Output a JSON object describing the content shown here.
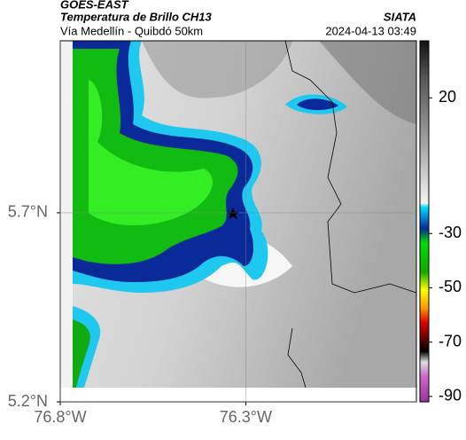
{
  "header": {
    "source": "GOES-EAST",
    "title": "Temperatura de Brillo CH13",
    "subtitle": "Vía Medellín - Quibdó 50km",
    "agency": "SIATA",
    "timestamp": "2024-04-13 03:49"
  },
  "map": {
    "xlim": [
      -76.8,
      -75.84
    ],
    "ylim": [
      5.2,
      6.155
    ],
    "xticks": [
      {
        "value": -76.8,
        "label": "76.8°W"
      },
      {
        "value": -76.3,
        "label": "76.3°W"
      }
    ],
    "yticks": [
      {
        "value": 5.2,
        "label": "5.2°N"
      },
      {
        "value": 5.7,
        "label": "5.7°N"
      }
    ]
  },
  "colorbar": {
    "lim": [
      41,
      -92
    ],
    "ticks": [
      20,
      -30,
      -50,
      -70,
      -90
    ]
  }
}
